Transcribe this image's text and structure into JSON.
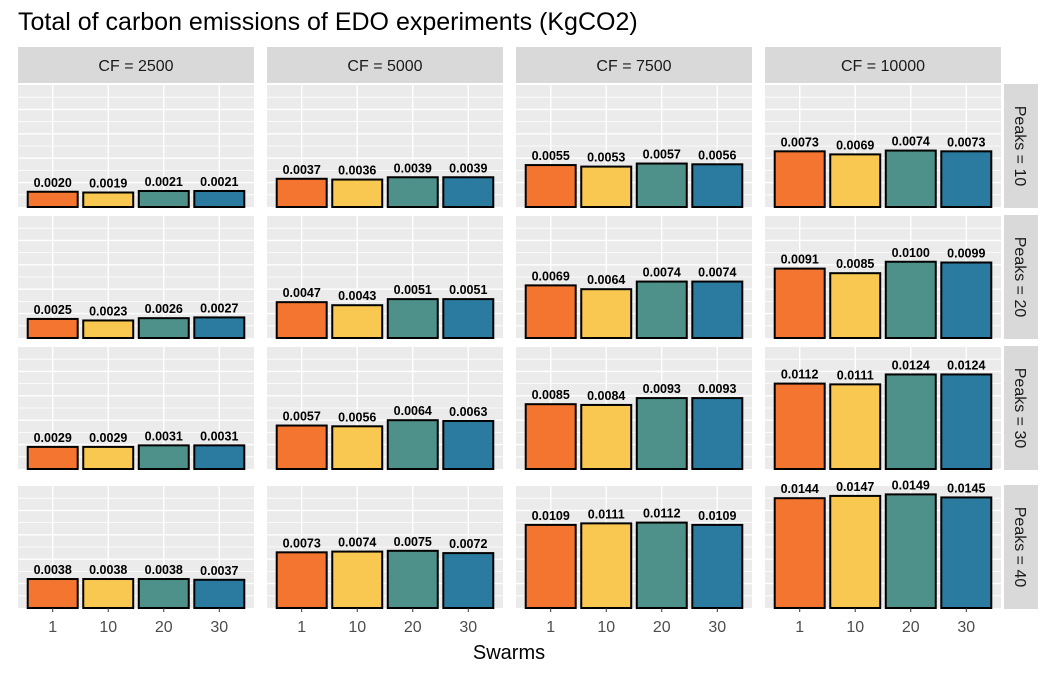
{
  "chart_data": {
    "type": "bar",
    "title": "Total of carbon emissions of EDO experiments (KgCO2)",
    "xlabel": "Swarms",
    "ylabel": "",
    "categories": [
      "1",
      "10",
      "20",
      "30"
    ],
    "colors": [
      "#f47530",
      "#f9c851",
      "#4d918a",
      "#2b7ba0"
    ],
    "ylim": [
      0,
      0.016
    ],
    "grid": true,
    "legend": "none",
    "facet_cols": [
      "CF = 2500",
      "CF = 5000",
      "CF = 7500",
      "CF = 10000"
    ],
    "facet_rows": [
      "Peaks = 10",
      "Peaks = 20",
      "Peaks = 30",
      "Peaks = 40"
    ],
    "panels": [
      [
        {
          "values": [
            0.002,
            0.0019,
            0.0021,
            0.0021
          ],
          "labels": [
            "0.0020",
            "0.0019",
            "0.0021",
            "0.0021"
          ]
        },
        {
          "values": [
            0.0037,
            0.0036,
            0.0039,
            0.0039
          ],
          "labels": [
            "0.0037",
            "0.0036",
            "0.0039",
            "0.0039"
          ]
        },
        {
          "values": [
            0.0055,
            0.0053,
            0.0057,
            0.0056
          ],
          "labels": [
            "0.0055",
            "0.0053",
            "0.0057",
            "0.0056"
          ]
        },
        {
          "values": [
            0.0073,
            0.0069,
            0.0074,
            0.0073
          ],
          "labels": [
            "0.0073",
            "0.0069",
            "0.0074",
            "0.0073"
          ]
        }
      ],
      [
        {
          "values": [
            0.0025,
            0.0023,
            0.0026,
            0.0027
          ],
          "labels": [
            "0.0025",
            "0.0023",
            "0.0026",
            "0.0027"
          ]
        },
        {
          "values": [
            0.0047,
            0.0043,
            0.0051,
            0.0051
          ],
          "labels": [
            "0.0047",
            "0.0043",
            "0.0051",
            "0.0051"
          ]
        },
        {
          "values": [
            0.0069,
            0.0064,
            0.0074,
            0.0074
          ],
          "labels": [
            "0.0069",
            "0.0064",
            "0.0074",
            "0.0074"
          ]
        },
        {
          "values": [
            0.0091,
            0.0085,
            0.01,
            0.0099
          ],
          "labels": [
            "0.0091",
            "0.0085",
            "0.0100",
            "0.0099"
          ]
        }
      ],
      [
        {
          "values": [
            0.0029,
            0.0029,
            0.0031,
            0.0031
          ],
          "labels": [
            "0.0029",
            "0.0029",
            "0.0031",
            "0.0031"
          ]
        },
        {
          "values": [
            0.0057,
            0.0056,
            0.0064,
            0.0063
          ],
          "labels": [
            "0.0057",
            "0.0056",
            "0.0064",
            "0.0063"
          ]
        },
        {
          "values": [
            0.0085,
            0.0084,
            0.0093,
            0.0093
          ],
          "labels": [
            "0.0085",
            "0.0084",
            "0.0093",
            "0.0093"
          ]
        },
        {
          "values": [
            0.0112,
            0.0111,
            0.0124,
            0.0124
          ],
          "labels": [
            "0.0112",
            "0.0111",
            "0.0124",
            "0.0124"
          ]
        }
      ],
      [
        {
          "values": [
            0.0038,
            0.0038,
            0.0038,
            0.0037
          ],
          "labels": [
            "0.0038",
            "0.0038",
            "0.0038",
            "0.0037"
          ]
        },
        {
          "values": [
            0.0073,
            0.0074,
            0.0075,
            0.0072
          ],
          "labels": [
            "0.0073",
            "0.0074",
            "0.0075",
            "0.0072"
          ]
        },
        {
          "values": [
            0.0109,
            0.0111,
            0.0112,
            0.0109
          ],
          "labels": [
            "0.0109",
            "0.0111",
            "0.0112",
            "0.0109"
          ]
        },
        {
          "values": [
            0.0144,
            0.0147,
            0.0149,
            0.0145
          ],
          "labels": [
            "0.0144",
            "0.0147",
            "0.0149",
            "0.0145"
          ]
        }
      ]
    ]
  }
}
